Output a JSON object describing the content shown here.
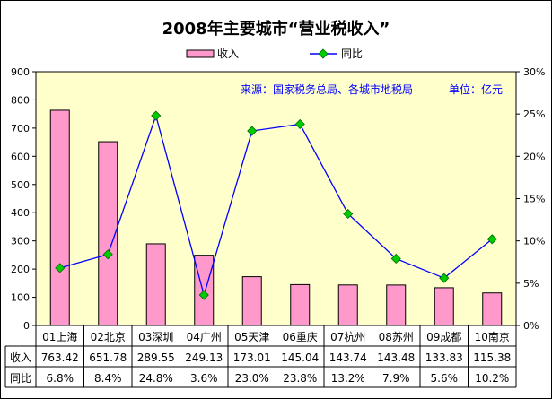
{
  "chart_data": {
    "type": "bar",
    "title": "2008年主要城市“营业税收入”",
    "source_note": "来源：国家税务总局、各城市地税局",
    "unit_note": "单位：亿元",
    "categories": [
      "01上海",
      "02北京",
      "03深圳",
      "04广州",
      "05天津",
      "06重庆",
      "07杭州",
      "08苏州",
      "09成都",
      "10南京"
    ],
    "series": [
      {
        "name": "收入",
        "type": "bar",
        "axis": "left",
        "color": "#ff99cc",
        "values": [
          763.42,
          651.78,
          289.55,
          249.13,
          173.01,
          145.04,
          143.74,
          143.48,
          133.83,
          115.38
        ],
        "labels": [
          "763.42",
          "651.78",
          "289.55",
          "249.13",
          "173.01",
          "145.04",
          "143.74",
          "143.48",
          "133.83",
          "115.38"
        ]
      },
      {
        "name": "同比",
        "type": "line",
        "axis": "right",
        "color": "#0000ff",
        "marker_color": "#00cc00",
        "values": [
          6.8,
          8.4,
          24.8,
          3.6,
          23.0,
          23.8,
          13.2,
          7.9,
          5.6,
          10.2
        ],
        "labels": [
          "6.8%",
          "8.4%",
          "24.8%",
          "3.6%",
          "23.0%",
          "23.8%",
          "13.2%",
          "7.9%",
          "5.6%",
          "10.2%"
        ]
      }
    ],
    "y_left": {
      "range": [
        0,
        900
      ],
      "ticks": [
        "0",
        "100",
        "200",
        "300",
        "400",
        "500",
        "600",
        "700",
        "800",
        "900"
      ]
    },
    "y_right": {
      "range": [
        0,
        30
      ],
      "ticks": [
        "0%",
        "5%",
        "10%",
        "15%",
        "20%",
        "25%",
        "30%"
      ]
    },
    "legend": {
      "position": "top",
      "items": [
        "收入",
        "同比"
      ]
    },
    "table_row_labels": [
      "收入",
      "同比"
    ],
    "plot_background": "#ffffcc",
    "grid": false
  }
}
